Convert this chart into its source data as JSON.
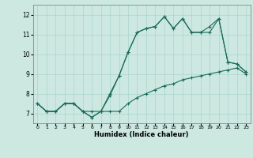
{
  "title": "",
  "xlabel": "Humidex (Indice chaleur)",
  "ylabel": "",
  "background_color": "#cce8e0",
  "line_color": "#1a6b5a",
  "grid_color": "#aad4cc",
  "xlim": [
    -0.5,
    23.5
  ],
  "ylim": [
    6.5,
    12.5
  ],
  "xticks": [
    0,
    1,
    2,
    3,
    4,
    5,
    6,
    7,
    8,
    9,
    10,
    11,
    12,
    13,
    14,
    15,
    16,
    17,
    18,
    19,
    20,
    21,
    22,
    23
  ],
  "yticks": [
    7,
    8,
    9,
    10,
    11,
    12
  ],
  "line1_x": [
    0,
    1,
    2,
    3,
    4,
    5,
    6,
    7,
    8,
    9,
    10,
    11,
    12,
    13,
    14,
    15,
    16,
    17,
    18,
    19,
    20,
    21,
    22,
    23
  ],
  "line1_y": [
    7.5,
    7.1,
    7.1,
    7.5,
    7.5,
    7.1,
    7.1,
    7.1,
    7.1,
    7.1,
    7.5,
    7.8,
    8.0,
    8.2,
    8.4,
    8.5,
    8.7,
    8.8,
    8.9,
    9.0,
    9.1,
    9.2,
    9.3,
    9.0
  ],
  "line2_x": [
    0,
    1,
    2,
    3,
    4,
    5,
    6,
    7,
    8,
    9,
    10,
    11,
    12,
    13,
    14,
    15,
    16,
    17,
    18,
    19,
    20,
    21,
    22,
    23
  ],
  "line2_y": [
    7.5,
    7.1,
    7.1,
    7.5,
    7.5,
    7.1,
    6.8,
    7.1,
    7.9,
    8.9,
    10.1,
    11.1,
    11.3,
    11.4,
    11.9,
    11.3,
    11.8,
    11.1,
    11.1,
    11.1,
    11.8,
    9.6,
    9.5,
    9.1
  ],
  "line3_x": [
    0,
    1,
    2,
    3,
    4,
    5,
    6,
    7,
    8,
    9,
    10,
    11,
    12,
    13,
    14,
    15,
    16,
    17,
    18,
    19,
    20,
    21,
    22,
    23
  ],
  "line3_y": [
    7.5,
    7.1,
    7.1,
    7.5,
    7.5,
    7.1,
    6.8,
    7.1,
    8.0,
    8.9,
    10.1,
    11.1,
    11.3,
    11.4,
    11.9,
    11.3,
    11.8,
    11.1,
    11.1,
    11.4,
    11.8,
    9.6,
    9.5,
    9.1
  ]
}
